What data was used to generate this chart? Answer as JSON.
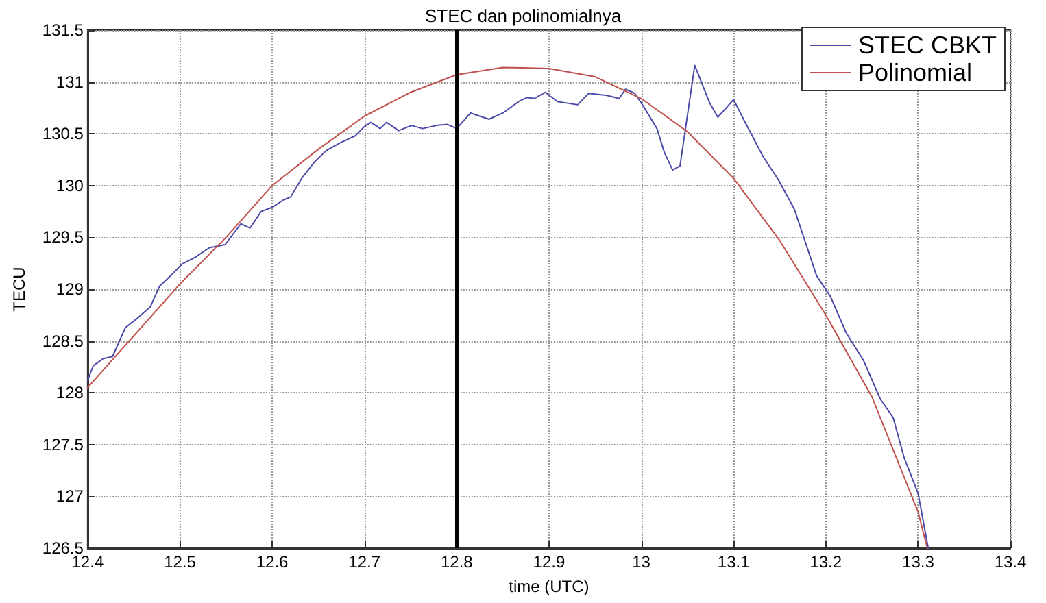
{
  "chart_data": {
    "type": "line",
    "title": "STEC dan polinomialnya",
    "xlabel": "time (UTC)",
    "ylabel": "TECU",
    "xlim": [
      12.4,
      13.4
    ],
    "xticks": [
      12.4,
      12.5,
      12.6,
      12.7,
      12.8,
      12.9,
      13,
      13.1,
      13.2,
      13.3,
      13.4
    ],
    "ylim": [
      126.5,
      131.5
    ],
    "yticks": [
      126.5,
      127,
      127.5,
      128,
      128.5,
      129,
      129.5,
      130,
      130.5,
      131,
      131.5
    ],
    "grid": true,
    "legend": "top right",
    "marker": "none",
    "line_style": "solid",
    "ref_lines": [
      {
        "axis": "x",
        "value": 12.8,
        "color": "#000000"
      }
    ],
    "series": [
      {
        "name": "STEC CBKT",
        "color": "#4a4aa8",
        "x": [
          12.4,
          12.406,
          12.417,
          12.427,
          12.441,
          12.454,
          12.468,
          12.478,
          12.49,
          12.502,
          12.517,
          12.532,
          12.549,
          12.566,
          12.576,
          12.588,
          12.6,
          12.612,
          12.62,
          12.632,
          12.646,
          12.659,
          12.673,
          12.69,
          12.7,
          12.707,
          12.717,
          12.724,
          12.737,
          12.751,
          12.763,
          12.778,
          12.79,
          12.8,
          12.815,
          12.835,
          12.85,
          12.867,
          12.876,
          12.884,
          12.896,
          12.909,
          12.931,
          12.943,
          12.963,
          12.976,
          12.983,
          12.993,
          13.002,
          13.017,
          13.025,
          13.034,
          13.042,
          13.058,
          13.074,
          13.083,
          13.1,
          13.112,
          13.132,
          13.149,
          13.166,
          13.178,
          13.19,
          13.205,
          13.222,
          13.241,
          13.259,
          13.273,
          13.285,
          13.3,
          13.311
        ],
        "values": [
          128.12,
          128.26,
          128.33,
          128.35,
          128.63,
          128.72,
          128.83,
          129.03,
          129.13,
          129.24,
          129.31,
          129.4,
          129.43,
          129.63,
          129.59,
          129.75,
          129.79,
          129.86,
          129.89,
          130.07,
          130.23,
          130.34,
          130.41,
          130.48,
          130.57,
          130.61,
          130.55,
          130.61,
          130.53,
          130.58,
          130.55,
          130.58,
          130.59,
          130.55,
          130.7,
          130.64,
          130.7,
          130.81,
          130.85,
          130.84,
          130.9,
          130.81,
          130.78,
          130.89,
          130.87,
          130.84,
          130.93,
          130.89,
          130.77,
          130.55,
          130.32,
          130.15,
          130.19,
          131.16,
          130.8,
          130.66,
          130.83,
          130.62,
          130.28,
          130.05,
          129.77,
          129.45,
          129.13,
          128.93,
          128.58,
          128.31,
          127.94,
          127.76,
          127.37,
          127.03,
          126.5
        ]
      },
      {
        "name": "Polinomial",
        "color": "#c0504d",
        "x": [
          12.4,
          12.45,
          12.5,
          12.55,
          12.6,
          12.65,
          12.7,
          12.75,
          12.8,
          12.85,
          12.9,
          12.95,
          13,
          13.05,
          13.1,
          13.15,
          13.2,
          13.25,
          13.3,
          13.31
        ],
        "values": [
          128.05,
          128.55,
          129.05,
          129.5,
          130.0,
          130.35,
          130.67,
          130.9,
          131.07,
          131.14,
          131.13,
          131.05,
          130.84,
          130.52,
          130.07,
          129.47,
          128.75,
          127.96,
          126.85,
          126.5
        ]
      }
    ]
  }
}
